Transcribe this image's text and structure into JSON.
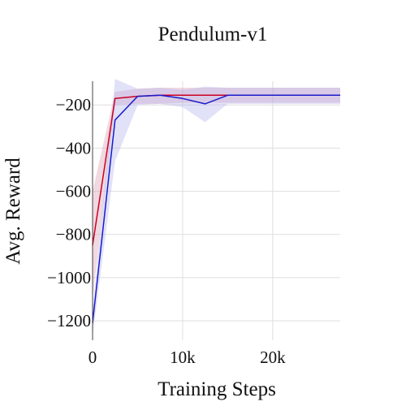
{
  "chart_data": {
    "type": "line",
    "title": "Pendulum-v1",
    "xlabel": "Training Steps",
    "ylabel": "Avg. Reward",
    "xlim": [
      0,
      27500
    ],
    "ylim": [
      -1290,
      -90
    ],
    "xticks": [
      0,
      10000,
      20000
    ],
    "xtick_labels": [
      "0",
      "10k",
      "20k"
    ],
    "yticks": [
      -200,
      -400,
      -600,
      -800,
      -1000,
      -1200
    ],
    "ytick_labels": [
      "−200",
      "−400",
      "−600",
      "−800",
      "−1000",
      "−1200"
    ],
    "grid": true,
    "legend": "none",
    "series": [
      {
        "color": "#cc0022",
        "band_color": "#dd9fb5",
        "x": [
          0,
          2500,
          5000,
          7500,
          10000,
          12500,
          15000,
          17500,
          20000,
          22500,
          25000,
          27500
        ],
        "y": [
          -850,
          -170,
          -160,
          -155,
          -155,
          -155,
          -155,
          -155,
          -155,
          -155,
          -155,
          -155
        ],
        "lower": [
          -1100,
          -200,
          -195,
          -195,
          -190,
          -190,
          -190,
          -190,
          -190,
          -190,
          -190,
          -190
        ],
        "upper": [
          -600,
          -140,
          -125,
          -120,
          -120,
          -120,
          -120,
          -120,
          -120,
          -120,
          -120,
          -120
        ]
      },
      {
        "color": "#1a1acc",
        "band_color": "#b4b4ee",
        "x": [
          0,
          2500,
          5000,
          7500,
          10000,
          12500,
          15000,
          17500,
          20000,
          22500,
          25000,
          27500
        ],
        "y": [
          -1210,
          -270,
          -160,
          -155,
          -170,
          -195,
          -155,
          -155,
          -155,
          -155,
          -155,
          -155
        ],
        "lower": [
          -1270,
          -460,
          -200,
          -195,
          -210,
          -280,
          -195,
          -195,
          -195,
          -195,
          -195,
          -195
        ],
        "upper": [
          -1150,
          -80,
          -125,
          -120,
          -130,
          -115,
          -120,
          -120,
          -120,
          -120,
          -120,
          -120
        ]
      }
    ]
  }
}
